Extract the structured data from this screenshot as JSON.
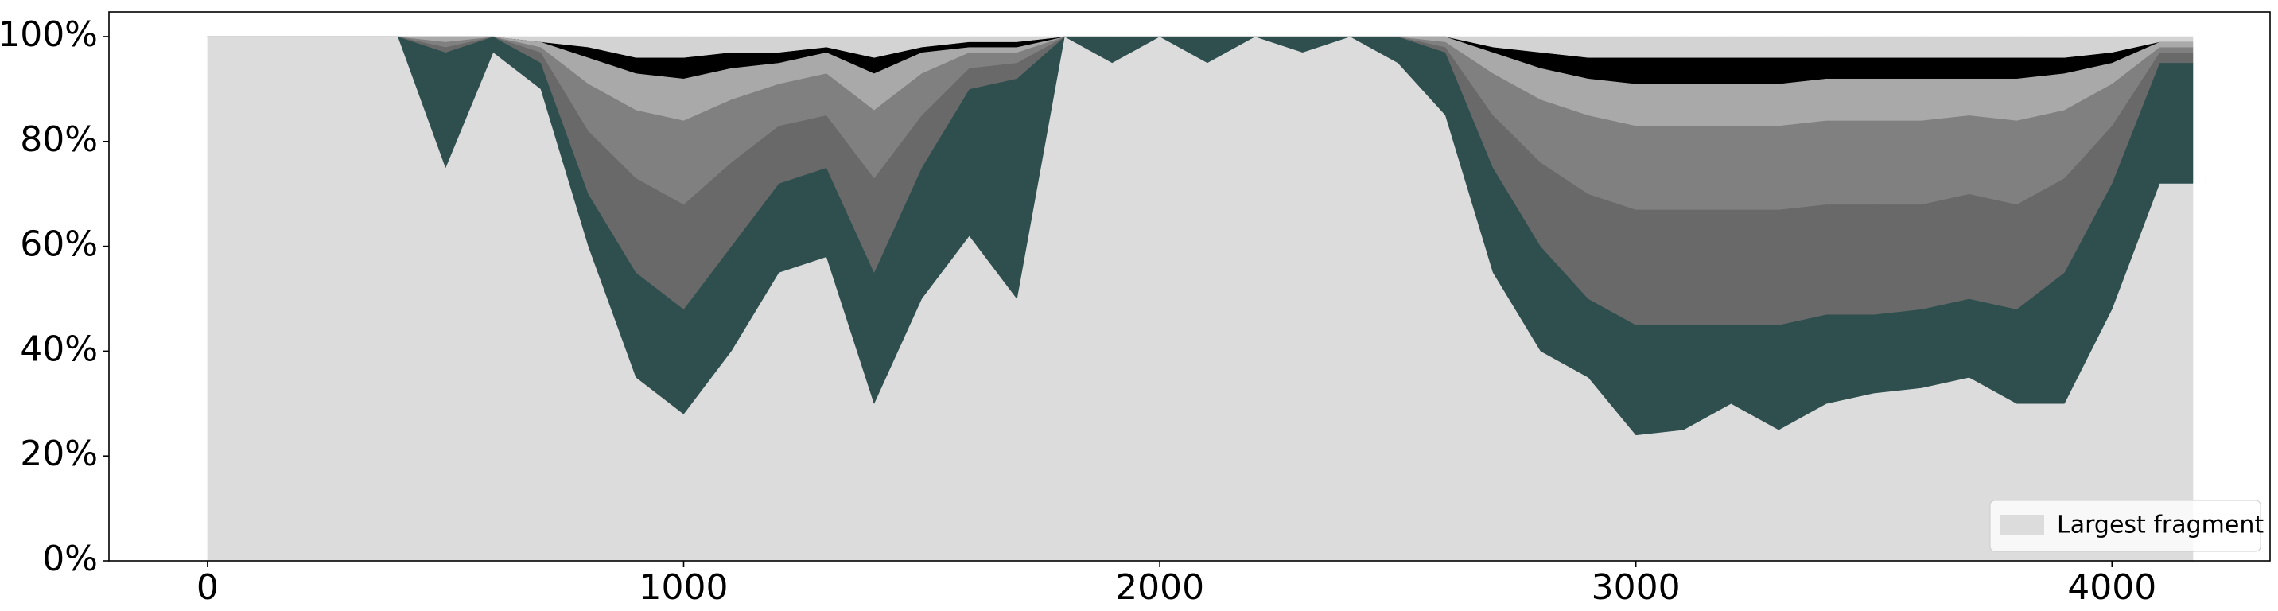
{
  "chart_data": {
    "type": "stacked-area",
    "x": [
      0,
      100,
      200,
      300,
      400,
      500,
      600,
      700,
      800,
      900,
      1000,
      1100,
      1200,
      1300,
      1400,
      1500,
      1600,
      1700,
      1800,
      1900,
      2000,
      2100,
      2200,
      2300,
      2400,
      2500,
      2600,
      2700,
      2800,
      2900,
      3000,
      3100,
      3200,
      3300,
      3400,
      3500,
      3600,
      3700,
      3800,
      3900,
      4000,
      4100,
      4170
    ],
    "series": [
      {
        "name": "Largest fragment",
        "color": "#dcdcdc",
        "values": [
          100,
          100,
          100,
          100,
          100,
          75,
          97,
          90,
          60,
          35,
          28,
          40,
          55,
          58,
          30,
          50,
          62,
          50,
          100,
          95,
          100,
          95,
          100,
          97,
          100,
          95,
          85,
          55,
          40,
          35,
          24,
          25,
          30,
          25,
          30,
          32,
          33,
          35,
          30,
          30,
          48,
          72,
          72
        ]
      },
      {
        "color": "#2f4f4f",
        "values": [
          0,
          0,
          0,
          0,
          0,
          22,
          3,
          5,
          10,
          20,
          20,
          20,
          17,
          17,
          25,
          25,
          28,
          42,
          0,
          5,
          0,
          5,
          0,
          3,
          0,
          5,
          12,
          20,
          20,
          15,
          21,
          20,
          15,
          20,
          17,
          15,
          15,
          15,
          18,
          25,
          24,
          23,
          23
        ]
      },
      {
        "color": "#696969",
        "values": [
          0,
          0,
          0,
          0,
          0,
          1,
          0,
          2,
          12,
          18,
          20,
          16,
          11,
          10,
          18,
          10,
          4,
          3,
          0,
          0,
          0,
          0,
          0,
          0,
          0,
          0,
          1,
          10,
          16,
          20,
          22,
          22,
          22,
          22,
          21,
          21,
          20,
          20,
          20,
          18,
          11,
          2,
          2
        ]
      },
      {
        "color": "#808080",
        "values": [
          0,
          0,
          0,
          0,
          0,
          1,
          0,
          1,
          9,
          13,
          16,
          12,
          8,
          8,
          13,
          8,
          3,
          2,
          0,
          0,
          0,
          0,
          0,
          0,
          0,
          0,
          1,
          8,
          12,
          15,
          16,
          16,
          16,
          16,
          16,
          16,
          16,
          15,
          16,
          13,
          8,
          1,
          1
        ]
      },
      {
        "color": "#a9a9a9",
        "values": [
          0,
          0,
          0,
          0,
          0,
          1,
          0,
          1,
          5,
          7,
          8,
          6,
          4,
          4,
          7,
          4,
          1,
          1,
          0,
          0,
          0,
          0,
          0,
          0,
          0,
          0,
          1,
          4,
          6,
          7,
          8,
          8,
          8,
          8,
          8,
          8,
          8,
          7,
          8,
          7,
          4,
          1,
          1
        ]
      },
      {
        "color": "#000000",
        "values": [
          0,
          0,
          0,
          0,
          0,
          0,
          0,
          0,
          2,
          3,
          4,
          3,
          2,
          1,
          3,
          1,
          1,
          1,
          0,
          0,
          0,
          0,
          0,
          0,
          0,
          0,
          0,
          1,
          3,
          4,
          5,
          5,
          5,
          5,
          4,
          4,
          4,
          4,
          4,
          3,
          2,
          0,
          0
        ]
      },
      {
        "color": "#d3d3d3",
        "values": [
          0,
          0,
          0,
          0,
          0,
          0,
          0,
          1,
          2,
          4,
          4,
          3,
          3,
          2,
          4,
          2,
          1,
          1,
          0,
          0,
          0,
          0,
          0,
          0,
          0,
          0,
          0,
          2,
          3,
          4,
          4,
          4,
          4,
          4,
          4,
          4,
          4,
          4,
          4,
          4,
          3,
          1,
          1
        ]
      }
    ],
    "xlim": [
      -207,
      4332
    ],
    "xticks": [
      0,
      1000,
      2000,
      3000,
      4000
    ],
    "ylim": [
      0,
      104.7
    ],
    "yticks": [
      {
        "value": 0,
        "label": "0%"
      },
      {
        "value": 20,
        "label": "20%"
      },
      {
        "value": 40,
        "label": "40%"
      },
      {
        "value": 60,
        "label": "60%"
      },
      {
        "value": 80,
        "label": "80%"
      },
      {
        "value": 100,
        "label": "100%"
      }
    ],
    "legend": "lower right"
  }
}
